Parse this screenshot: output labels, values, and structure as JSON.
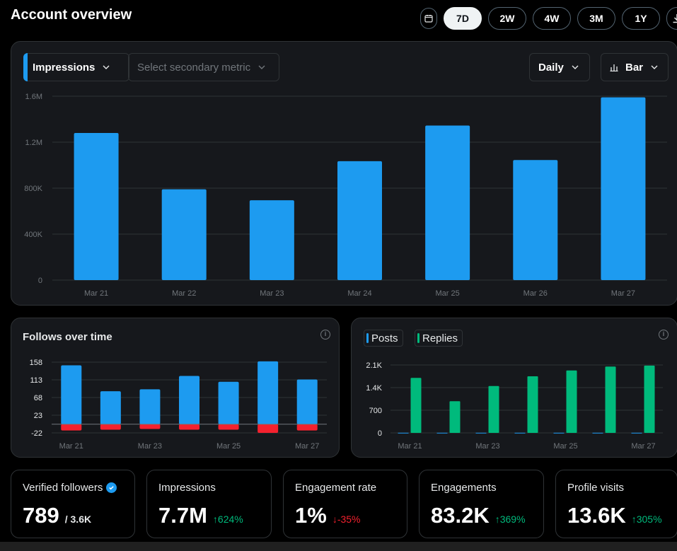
{
  "header": {
    "title": "Account overview",
    "ranges": [
      "7D",
      "2W",
      "4W",
      "3M",
      "1Y"
    ],
    "active_range": "7D"
  },
  "main_chart": {
    "primary_metric": "Impressions",
    "secondary_placeholder": "Select secondary metric",
    "granularity": "Daily",
    "chart_type_label": "Bar"
  },
  "follows_card": {
    "title": "Follows over time"
  },
  "posts_card": {
    "legend": [
      "Posts",
      "Replies"
    ]
  },
  "stats": [
    {
      "label": "Verified followers",
      "value": "789",
      "sub": "/ 3.6K",
      "change": "",
      "dir": ""
    },
    {
      "label": "Impressions",
      "value": "7.7M",
      "sub": "",
      "change": "624%",
      "dir": "up"
    },
    {
      "label": "Engagement rate",
      "value": "1%",
      "sub": "",
      "change": "-35%",
      "dir": "down"
    },
    {
      "label": "Engagements",
      "value": "83.2K",
      "sub": "",
      "change": "369%",
      "dir": "up"
    },
    {
      "label": "Profile visits",
      "value": "13.6K",
      "sub": "",
      "change": "305%",
      "dir": "up"
    }
  ],
  "colors": {
    "blue": "#1d9bf0",
    "green": "#00ba7c",
    "red": "#f4212e",
    "card": "#16181c"
  },
  "chart_data": [
    {
      "type": "bar",
      "categories": [
        "Mar 21",
        "Mar 22",
        "Mar 23",
        "Mar 24",
        "Mar 25",
        "Mar 26",
        "Mar 27"
      ],
      "series": [
        {
          "name": "Impressions",
          "values": [
            1280000,
            790000,
            695000,
            1035000,
            1345000,
            1045000,
            1590000
          ]
        }
      ],
      "yticks": [
        0,
        400000,
        800000,
        1200000,
        1600000
      ],
      "ytick_labels": [
        "0",
        "400K",
        "800K",
        "1.2M",
        "1.6M"
      ],
      "ylim": [
        0,
        1600000
      ]
    },
    {
      "type": "bar",
      "title": "Follows over time",
      "categories": [
        "Mar 21",
        "Mar 22",
        "Mar 23",
        "Mar 24",
        "Mar 25",
        "Mar 26",
        "Mar 27"
      ],
      "x_labels": [
        "Mar 21",
        "Mar 23",
        "Mar 25",
        "Mar 27"
      ],
      "series": [
        {
          "values": [
            150,
            84,
            89,
            123,
            108,
            160,
            114
          ]
        },
        {
          "values": [
            -16,
            -14,
            -12,
            -14,
            -14,
            -22,
            -16
          ]
        }
      ],
      "yticks": [
        -22,
        23,
        68,
        113,
        158
      ],
      "ylim": [
        -22,
        158
      ]
    },
    {
      "type": "bar",
      "categories": [
        "Mar 21",
        "Mar 22",
        "Mar 23",
        "Mar 24",
        "Mar 25",
        "Mar 26",
        "Mar 27"
      ],
      "x_labels": [
        "Mar 21",
        "Mar 23",
        "Mar 25",
        "Mar 27"
      ],
      "series": [
        {
          "name": "Posts",
          "values": [
            4,
            4,
            4,
            4,
            4,
            4,
            4
          ]
        },
        {
          "name": "Replies",
          "values": [
            1700,
            980,
            1450,
            1750,
            1930,
            2050,
            2080
          ]
        }
      ],
      "yticks": [
        0,
        700,
        1400,
        2100
      ],
      "ytick_labels": [
        "0",
        "700",
        "1.4K",
        "2.1K"
      ],
      "ylim": [
        0,
        2100
      ]
    }
  ]
}
